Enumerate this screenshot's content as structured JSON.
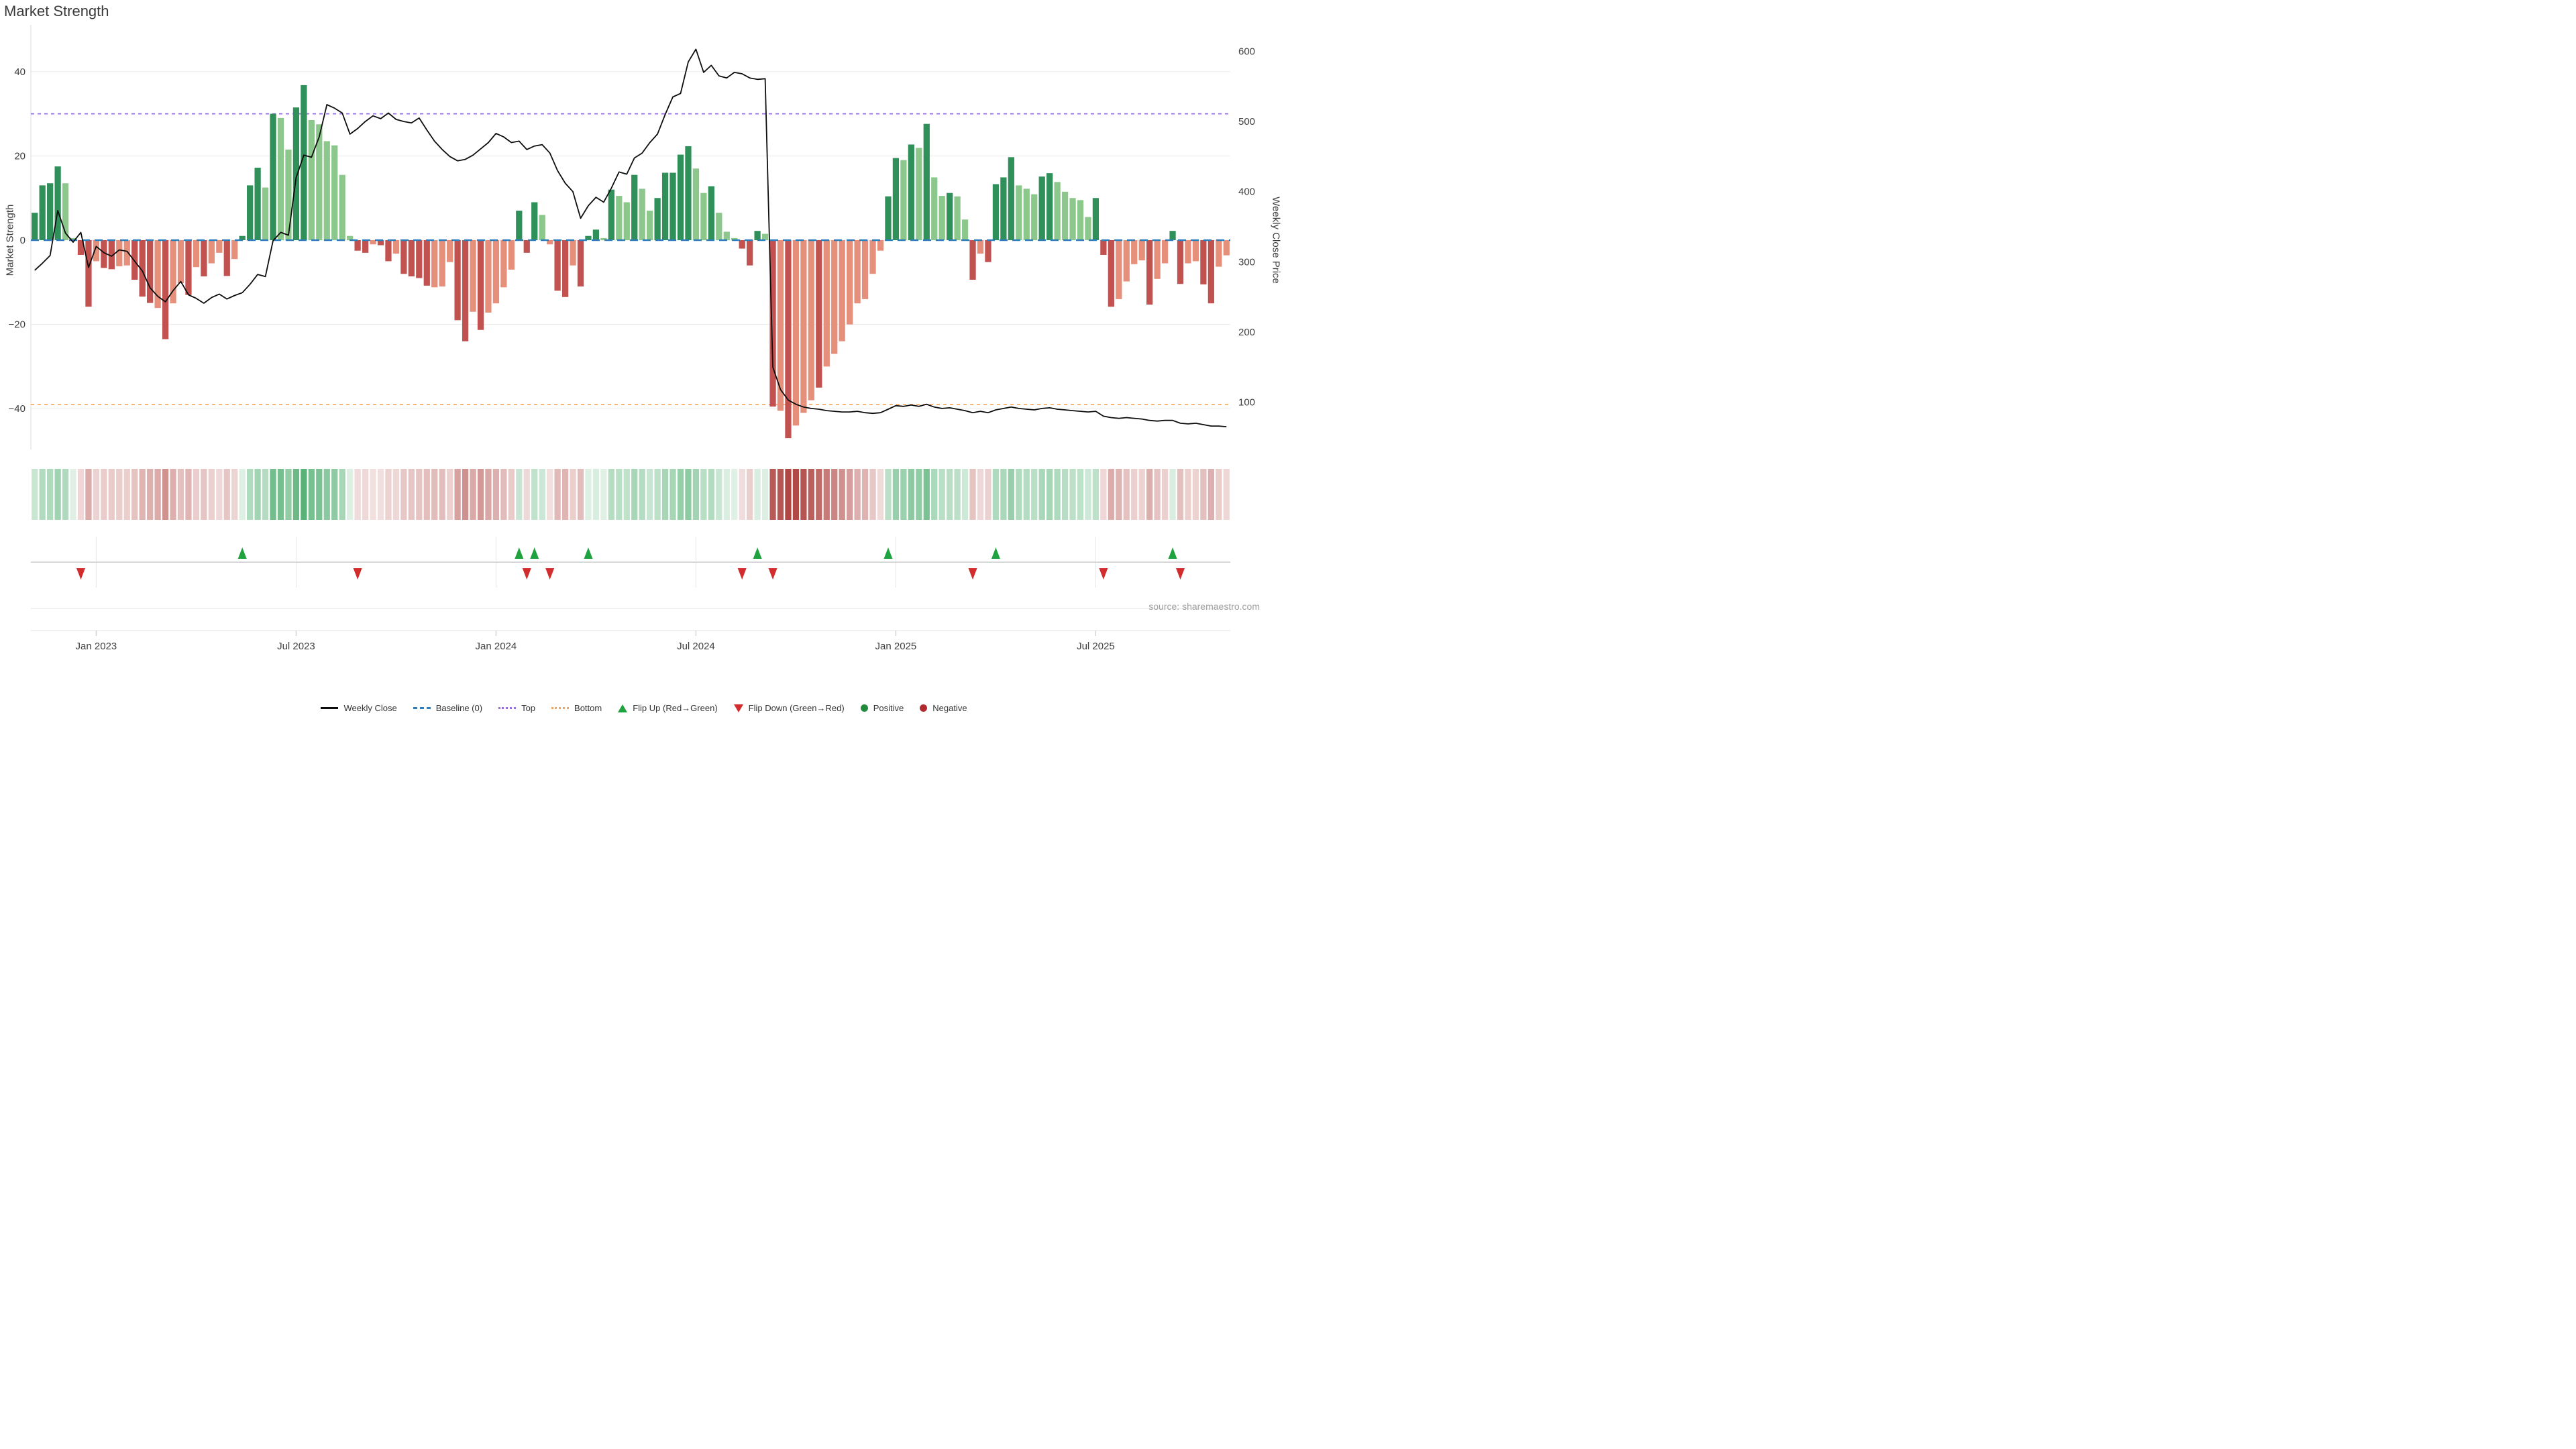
{
  "source": "source: sharemaestro.com",
  "legend": [
    {
      "label": "Weekly Close",
      "type": "line",
      "color": "#0d0d0d"
    },
    {
      "label": "Baseline (0)",
      "type": "dash",
      "color": "#2e7ebc"
    },
    {
      "label": "Top",
      "type": "dot-top",
      "color": "#9670dd"
    },
    {
      "label": "Bottom",
      "type": "dot-bot",
      "color": "#f0a55f"
    },
    {
      "label": "Flip Up (Red→Green)",
      "type": "tri-up",
      "color": "#1fa33f"
    },
    {
      "label": "Flip Down (Green→Red)",
      "type": "tri-down",
      "color": "#d32c2c"
    },
    {
      "label": "Positive",
      "type": "circle-pos",
      "color": "#218a3c"
    },
    {
      "label": "Negative",
      "type": "circle-neg",
      "color": "#b02a30"
    }
  ],
  "chart_data": {
    "type": "combo",
    "title": "Market Strength",
    "subtypes": [
      "bar",
      "line",
      "heatmap",
      "scatter"
    ],
    "left_axis": {
      "label": "Market Strength",
      "ticks": [
        "40",
        "20",
        "0",
        "−20",
        "−40"
      ],
      "tick_values": [
        40,
        20,
        0,
        -20,
        -40
      ]
    },
    "right_axis": {
      "label": "Weekly Close Price",
      "ticks": [
        "600",
        "500",
        "400",
        "300",
        "200",
        "100"
      ],
      "tick_values": [
        600,
        500,
        400,
        300,
        200,
        100
      ]
    },
    "x_axis": {
      "ticks": [
        {
          "label": "Jan 2023",
          "week": 8
        },
        {
          "label": "Jul 2023",
          "week": 34
        },
        {
          "label": "Jan 2024",
          "week": 60
        },
        {
          "label": "Jul 2024",
          "week": 86
        },
        {
          "label": "Jan 2025",
          "week": 112
        },
        {
          "label": "Jul 2025",
          "week": 138
        }
      ],
      "weeks_total": 156
    },
    "reference_lines": {
      "baseline": {
        "value": 0,
        "color": "#2e7ebc"
      },
      "top": {
        "value": 30,
        "color": "#9670dd"
      },
      "bottom": {
        "value": -39,
        "color": "#f0a55f"
      }
    },
    "shade_colors": {
      "dg": "#2f9059",
      "lg": "#8cc88c",
      "lr": "#e6907c",
      "dr": "#c25250"
    },
    "heat_colors": {
      "positive": "#3aa45e",
      "negative": "#b04743"
    },
    "line_color": "#0d0d0d",
    "flip_up_weeks": [
      27,
      63,
      65,
      72,
      94,
      111,
      125,
      148
    ],
    "flip_down_weeks": [
      6,
      42,
      64,
      67,
      92,
      96,
      122,
      139,
      149
    ],
    "weeks_format": [
      "strength_value",
      "shade(dg=dark-green,lg=light-green,lr=light-red,dr=dark-red)",
      "weekly_close_price"
    ],
    "weeks": [
      [
        6.5,
        "dg",
        288
      ],
      [
        13,
        "dg",
        298
      ],
      [
        13.5,
        "dg",
        309
      ],
      [
        17.5,
        "dg",
        373
      ],
      [
        13.5,
        "lg",
        341
      ],
      [
        0.5,
        "lg",
        328
      ],
      [
        -3.5,
        "dr",
        342
      ],
      [
        -15.8,
        "dr",
        292
      ],
      [
        -5,
        "lr",
        322
      ],
      [
        -6.6,
        "dr",
        313
      ],
      [
        -6.9,
        "dr",
        308
      ],
      [
        -6.2,
        "lr",
        317
      ],
      [
        -6,
        "lr",
        315
      ],
      [
        -9.4,
        "dr",
        301
      ],
      [
        -13.4,
        "dr",
        287
      ],
      [
        -14.9,
        "dr",
        263
      ],
      [
        -16.1,
        "lr",
        251
      ],
      [
        -23.5,
        "dr",
        243
      ],
      [
        -15,
        "lr",
        259
      ],
      [
        -10.2,
        "lr",
        272
      ],
      [
        -13,
        "dr",
        253
      ],
      [
        -6.4,
        "lr",
        248
      ],
      [
        -8.6,
        "dr",
        241
      ],
      [
        -5.5,
        "lr",
        249
      ],
      [
        -3,
        "lr",
        254
      ],
      [
        -8.5,
        "dr",
        247
      ],
      [
        -4.5,
        "lr",
        252
      ],
      [
        1,
        "dg",
        256
      ],
      [
        13,
        "dg",
        268
      ],
      [
        17.2,
        "dg",
        282
      ],
      [
        12.5,
        "lg",
        279
      ],
      [
        30,
        "dg",
        330
      ],
      [
        29,
        "lg",
        342
      ],
      [
        21.5,
        "lg",
        338
      ],
      [
        31.5,
        "dg",
        420
      ],
      [
        36.8,
        "dg",
        452
      ],
      [
        28.5,
        "lg",
        449
      ],
      [
        27.5,
        "lg",
        478
      ],
      [
        23.5,
        "lg",
        524
      ],
      [
        22.5,
        "lg",
        519
      ],
      [
        15.5,
        "lg",
        512
      ],
      [
        1,
        "lg",
        482
      ],
      [
        -2.5,
        "dr",
        490
      ],
      [
        -3,
        "dr",
        500
      ],
      [
        -1,
        "lr",
        508
      ],
      [
        -1.2,
        "dr",
        504
      ],
      [
        -5,
        "dr",
        512
      ],
      [
        -3.2,
        "lr",
        503
      ],
      [
        -8,
        "dr",
        500
      ],
      [
        -8.6,
        "dr",
        498
      ],
      [
        -9,
        "dr",
        505
      ],
      [
        -10.8,
        "dr",
        488
      ],
      [
        -11.2,
        "lr",
        472
      ],
      [
        -11,
        "lr",
        460
      ],
      [
        -5.2,
        "lr",
        450
      ],
      [
        -19,
        "dr",
        444
      ],
      [
        -24,
        "dr",
        446
      ],
      [
        -17,
        "lr",
        452
      ],
      [
        -21.3,
        "dr",
        461
      ],
      [
        -17.2,
        "lr",
        470
      ],
      [
        -15,
        "lr",
        483
      ],
      [
        -11.2,
        "lr",
        478
      ],
      [
        -7,
        "lr",
        470
      ],
      [
        7,
        "dg",
        472
      ],
      [
        -3,
        "dr",
        460
      ],
      [
        9,
        "dg",
        465
      ],
      [
        6,
        "lg",
        467
      ],
      [
        -1,
        "lr",
        455
      ],
      [
        -12,
        "dr",
        430
      ],
      [
        -13.5,
        "dr",
        412
      ],
      [
        -6,
        "lr",
        400
      ],
      [
        -11,
        "dr",
        362
      ],
      [
        1,
        "dg",
        380
      ],
      [
        2.5,
        "dg",
        392
      ],
      [
        0.5,
        "lg",
        385
      ],
      [
        12,
        "dg",
        405
      ],
      [
        10.5,
        "lg",
        428
      ],
      [
        9,
        "lg",
        425
      ],
      [
        15.5,
        "dg",
        448
      ],
      [
        12.2,
        "lg",
        455
      ],
      [
        7,
        "lg",
        470
      ],
      [
        10,
        "dg",
        482
      ],
      [
        16,
        "dg",
        510
      ],
      [
        16,
        "dg",
        535
      ],
      [
        20.3,
        "dg",
        540
      ],
      [
        22.3,
        "dg",
        585
      ],
      [
        17,
        "lg",
        603
      ],
      [
        11.2,
        "lg",
        570
      ],
      [
        12.8,
        "dg",
        580
      ],
      [
        6.5,
        "lg",
        565
      ],
      [
        2,
        "lg",
        562
      ],
      [
        0.5,
        "lg",
        570
      ],
      [
        -2,
        "dr",
        568
      ],
      [
        -6,
        "dr",
        562
      ],
      [
        2.2,
        "dg",
        560
      ],
      [
        1.5,
        "lg",
        561
      ],
      [
        -39.5,
        "dr",
        150
      ],
      [
        -40.5,
        "lr",
        118
      ],
      [
        -47,
        "dr",
        103
      ],
      [
        -44,
        "lr",
        97
      ],
      [
        -41,
        "lr",
        93
      ],
      [
        -38,
        "lr",
        91
      ],
      [
        -35,
        "dr",
        90
      ],
      [
        -30,
        "lr",
        88
      ],
      [
        -27,
        "lr",
        87
      ],
      [
        -24,
        "lr",
        86
      ],
      [
        -20,
        "lr",
        86
      ],
      [
        -15,
        "lr",
        87
      ],
      [
        -14,
        "lr",
        85
      ],
      [
        -8,
        "lr",
        84
      ],
      [
        -2.5,
        "lr",
        85
      ],
      [
        10.4,
        "dg",
        90
      ],
      [
        19.5,
        "dg",
        95
      ],
      [
        19,
        "lg",
        94
      ],
      [
        22.7,
        "dg",
        96
      ],
      [
        21.9,
        "lg",
        94
      ],
      [
        27.6,
        "dg",
        97
      ],
      [
        14.9,
        "lg",
        93
      ],
      [
        10.5,
        "lg",
        91
      ],
      [
        11.2,
        "dg",
        92
      ],
      [
        10.4,
        "lg",
        90
      ],
      [
        4.9,
        "lg",
        88
      ],
      [
        -9.4,
        "dr",
        85
      ],
      [
        -3.2,
        "lr",
        87
      ],
      [
        -5.2,
        "dr",
        85
      ],
      [
        13.3,
        "dg",
        89
      ],
      [
        14.9,
        "dg",
        91
      ],
      [
        19.7,
        "dg",
        93
      ],
      [
        13,
        "lg",
        91
      ],
      [
        12.2,
        "lg",
        90
      ],
      [
        10.9,
        "lg",
        89
      ],
      [
        15.1,
        "dg",
        91
      ],
      [
        15.9,
        "dg",
        92
      ],
      [
        13.8,
        "lg",
        90
      ],
      [
        11.5,
        "lg",
        89
      ],
      [
        10,
        "lg",
        88
      ],
      [
        9.5,
        "lg",
        87
      ],
      [
        5.5,
        "lg",
        86
      ],
      [
        10,
        "dg",
        87
      ],
      [
        -3.5,
        "dr",
        80
      ],
      [
        -15.8,
        "dr",
        78
      ],
      [
        -14,
        "lr",
        77
      ],
      [
        -9.8,
        "lr",
        78
      ],
      [
        -5.7,
        "lr",
        77
      ],
      [
        -4.8,
        "lr",
        76
      ],
      [
        -15.3,
        "dr",
        74
      ],
      [
        -9.2,
        "lr",
        73
      ],
      [
        -5.5,
        "lr",
        74
      ],
      [
        2.2,
        "dg",
        74
      ],
      [
        -10.4,
        "dr",
        70
      ],
      [
        -5.5,
        "lr",
        69
      ],
      [
        -5,
        "lr",
        70
      ],
      [
        -10.5,
        "dr",
        68
      ],
      [
        -15,
        "dr",
        66
      ],
      [
        -6.3,
        "lr",
        66
      ],
      [
        -3.6,
        "lr",
        65
      ]
    ]
  }
}
